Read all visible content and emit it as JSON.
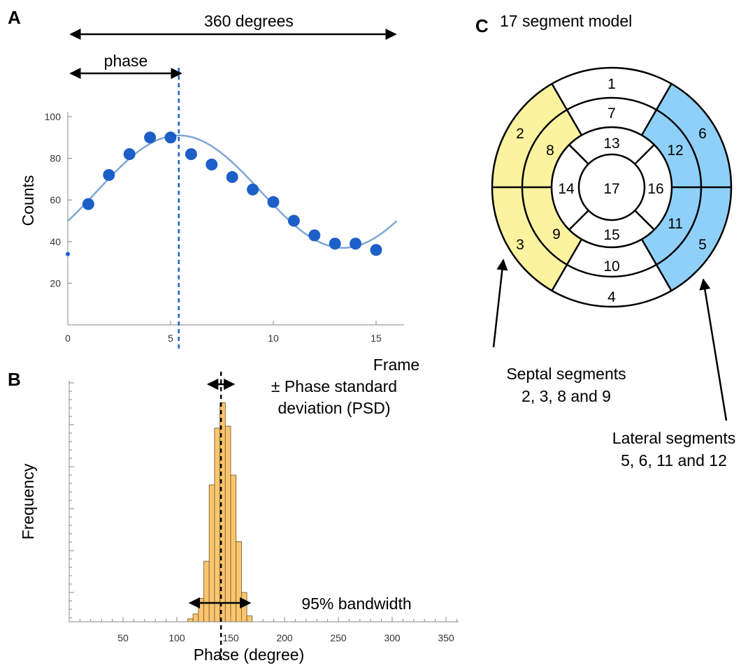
{
  "panels": {
    "a": {
      "letter": "A",
      "span_label": "360 degrees",
      "phase_label": "phase",
      "phase_frame": 5.4
    },
    "b": {
      "letter": "B",
      "psd_label_line1": "± Phase standard",
      "psd_label_line2": "deviation (PSD)",
      "bandwidth_label": "95% bandwidth",
      "mean_phase": 141,
      "psd_arrow": [
        129,
        153
      ],
      "bandwidth_arrow": [
        112,
        168
      ]
    },
    "c": {
      "letter": "C",
      "title": "17 segment model",
      "septal_label_line1": "Septal segments",
      "septal_label_line2": "2, 3, 8 and 9",
      "lateral_label_line1": "Lateral segments",
      "lateral_label_line2": "5, 6, 11 and 12",
      "segments": [
        "1",
        "2",
        "3",
        "4",
        "5",
        "6",
        "7",
        "8",
        "9",
        "10",
        "11",
        "12",
        "13",
        "14",
        "15",
        "16",
        "17"
      ],
      "septal_color": "#fbf39f",
      "lateral_color": "#8fd0f9"
    }
  },
  "chart_data": [
    {
      "type": "scatter",
      "xlabel": "Frame",
      "ylabel": "Counts",
      "xlim": [
        0,
        16
      ],
      "ylim": [
        0,
        100
      ],
      "xticks": [
        0,
        5,
        10,
        15
      ],
      "yticks": [
        20,
        40,
        60,
        80,
        100
      ],
      "series": [
        {
          "kind": "points",
          "x": [
            0,
            1,
            2,
            3,
            4,
            5,
            6,
            7,
            8,
            9,
            10,
            11,
            12,
            13,
            14,
            15
          ],
          "y": [
            34,
            58,
            72,
            82,
            90,
            90,
            82,
            77,
            71,
            65,
            59,
            50,
            43,
            39,
            39,
            36
          ]
        },
        {
          "kind": "fit-curve",
          "model": "64 + 27*cos(2*pi*(x - 5.4)/16)"
        }
      ],
      "annotations": [
        "360 degrees",
        "phase"
      ],
      "point_color": "#1d5fc8",
      "curve_color": "#7ea6d6"
    },
    {
      "type": "bar",
      "xlabel": "Phase (degree)",
      "ylabel": "Frequency",
      "xlim": [
        0,
        360
      ],
      "xticks": [
        50,
        100,
        150,
        200,
        250,
        300,
        350
      ],
      "bin_width": 5,
      "bins_start": [
        110,
        115,
        120,
        125,
        130,
        135,
        140,
        145,
        150,
        155,
        160,
        165
      ],
      "values": [
        3,
        8,
        24,
        62,
        140,
        198,
        224,
        200,
        150,
        82,
        30,
        6
      ],
      "bar_color": "#fbc56d",
      "annotations": [
        "± Phase standard deviation (PSD)",
        "95% bandwidth"
      ]
    }
  ]
}
